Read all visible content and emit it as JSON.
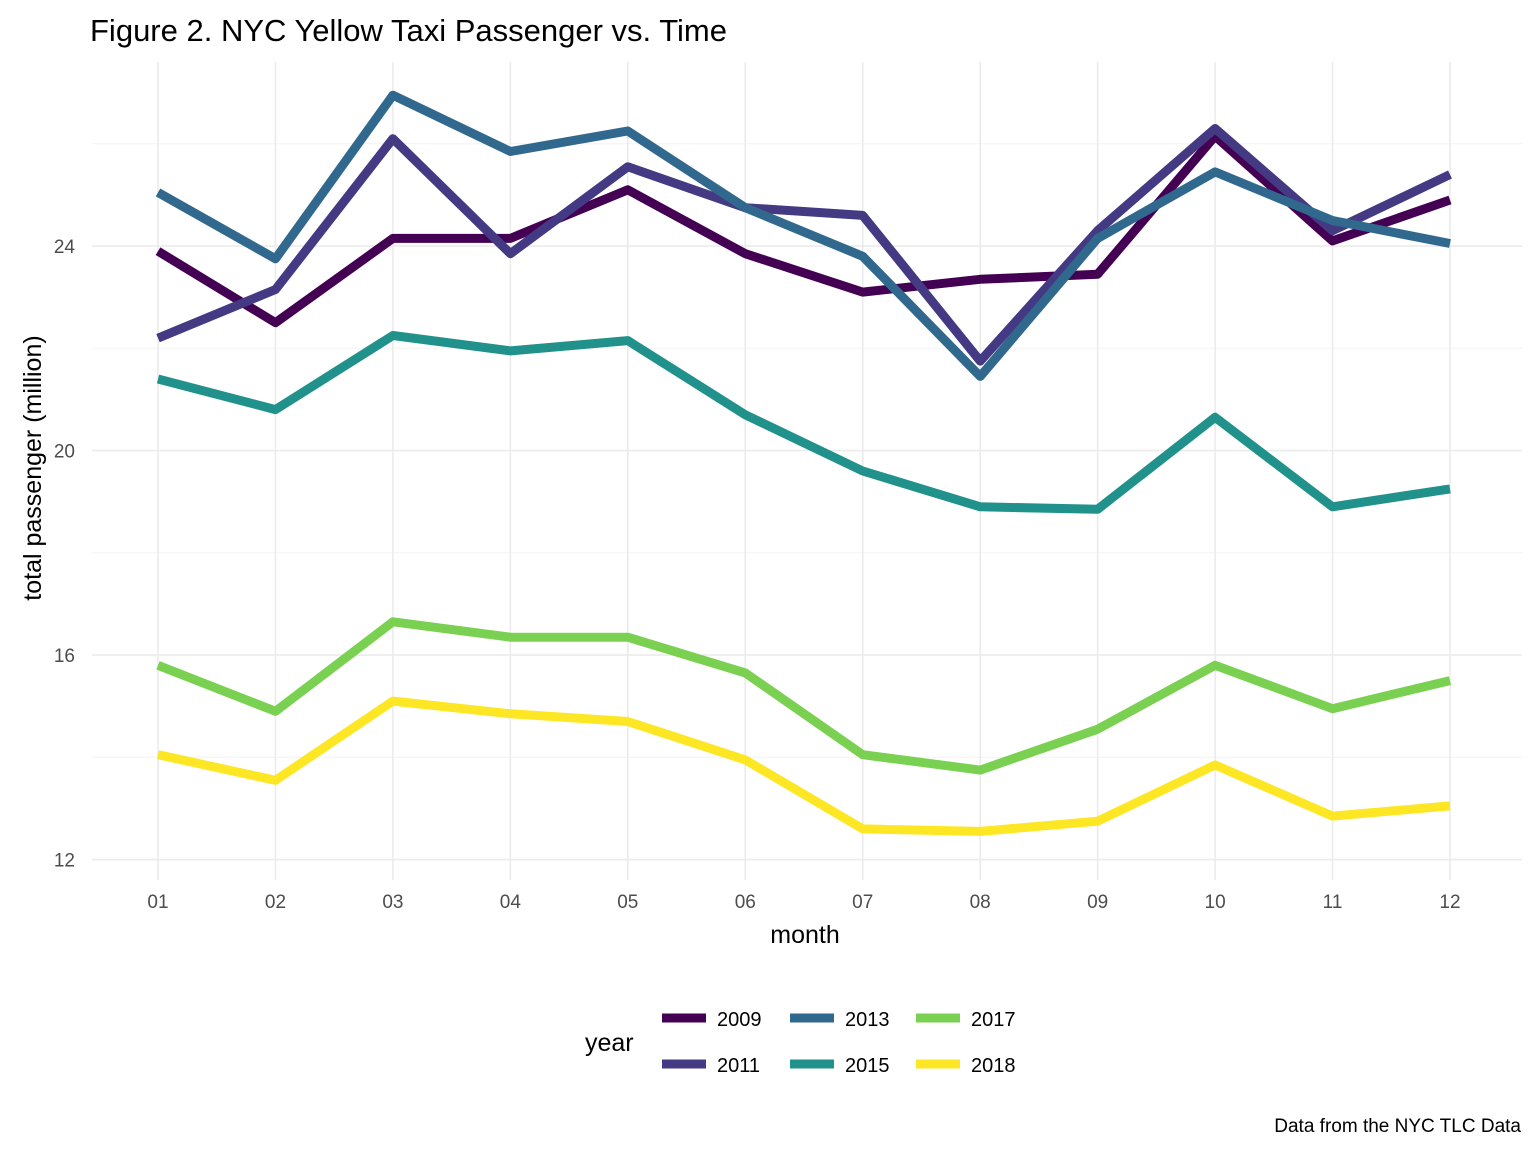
{
  "chart_data": {
    "type": "line",
    "title": "Figure 2. NYC Yellow Taxi Passenger vs. Time",
    "xlabel": "month",
    "ylabel": "total passenger (million)",
    "caption": "Data from the NYC TLC Data",
    "categories": [
      "01",
      "02",
      "03",
      "04",
      "05",
      "06",
      "07",
      "08",
      "09",
      "10",
      "11",
      "12"
    ],
    "yticks": [
      12,
      16,
      20,
      24
    ],
    "ylim": [
      11.6,
      27.6
    ],
    "grid": true,
    "legend": {
      "title": "year",
      "position": "bottom",
      "ncol": 3
    },
    "series": [
      {
        "name": "2009",
        "color": "#440154",
        "values": [
          23.9,
          22.5,
          24.15,
          24.15,
          25.1,
          23.85,
          23.1,
          23.35,
          23.45,
          26.15,
          24.1,
          24.9
        ]
      },
      {
        "name": "2011",
        "color": "#443a83",
        "values": [
          22.2,
          23.15,
          26.1,
          23.85,
          25.55,
          24.75,
          24.6,
          21.75,
          24.3,
          26.3,
          24.3,
          25.4
        ]
      },
      {
        "name": "2013",
        "color": "#31688e",
        "values": [
          25.05,
          23.75,
          26.95,
          25.85,
          26.25,
          24.75,
          23.8,
          21.45,
          24.15,
          25.45,
          24.5,
          24.05
        ]
      },
      {
        "name": "2015",
        "color": "#21918c",
        "values": [
          21.4,
          20.8,
          22.25,
          21.95,
          22.15,
          20.7,
          19.6,
          18.9,
          18.85,
          20.65,
          18.9,
          19.25
        ]
      },
      {
        "name": "2017",
        "color": "#7ad151",
        "values": [
          15.8,
          14.9,
          16.65,
          16.35,
          16.35,
          15.65,
          14.05,
          13.75,
          14.55,
          15.8,
          14.95,
          15.5
        ]
      },
      {
        "name": "2018",
        "color": "#fde725",
        "values": [
          14.05,
          13.55,
          15.1,
          14.85,
          14.7,
          13.95,
          12.6,
          12.55,
          12.75,
          13.85,
          12.85,
          13.05
        ]
      }
    ]
  }
}
